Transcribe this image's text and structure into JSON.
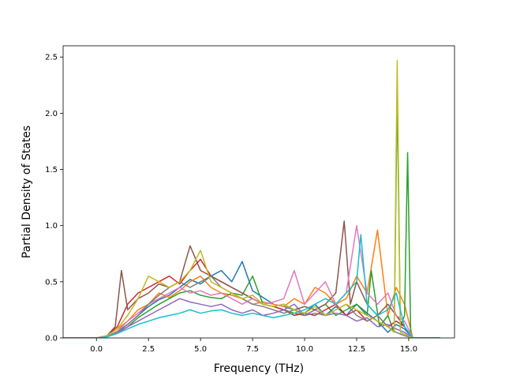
{
  "chart_data": {
    "type": "line",
    "title": "",
    "xlabel": "Frequency (THz)",
    "ylabel": "Partial Density of States",
    "xlim": [
      -1.6,
      17.2
    ],
    "ylim": [
      0.0,
      2.6
    ],
    "x_ticks": [
      0.0,
      2.5,
      5.0,
      7.5,
      10.0,
      12.5,
      15.0
    ],
    "x_tick_labels": [
      "0.0",
      "2.5",
      "5.0",
      "7.5",
      "10.0",
      "12.5",
      "15.0"
    ],
    "y_ticks": [
      0.0,
      0.5,
      1.0,
      1.5,
      2.0,
      2.5
    ],
    "y_tick_labels": [
      "0.0",
      "0.5",
      "1.0",
      "1.5",
      "2.0",
      "2.5"
    ],
    "grid": false,
    "legend": "none",
    "colors": [
      "#1f77b4",
      "#ff7f0e",
      "#2ca02c",
      "#d62728",
      "#9467bd",
      "#8c564b",
      "#e377c2",
      "#7f7f7f",
      "#bcbd22",
      "#17becf"
    ],
    "series": [
      {
        "x": [
          -1.6,
          0.0,
          0.5,
          1.0,
          1.5,
          2.0,
          2.5,
          3.0,
          3.5,
          4.0,
          4.5,
          5.0,
          5.5,
          6.0,
          6.5,
          7.0,
          7.5,
          8.0,
          8.5,
          9.0,
          9.5,
          10.0,
          10.5,
          11.0,
          11.5,
          12.0,
          12.5,
          13.0,
          13.5,
          14.0,
          14.4,
          14.8,
          15.2,
          16.5
        ],
        "y": [
          0,
          0,
          0.01,
          0.06,
          0.12,
          0.2,
          0.28,
          0.34,
          0.38,
          0.45,
          0.52,
          0.48,
          0.55,
          0.6,
          0.5,
          0.68,
          0.42,
          0.36,
          0.3,
          0.28,
          0.25,
          0.22,
          0.3,
          0.2,
          0.28,
          0.2,
          0.3,
          0.22,
          0.15,
          0.05,
          0.12,
          0.08,
          0,
          0
        ]
      },
      {
        "x": [
          -1.6,
          0.0,
          0.5,
          1.0,
          1.5,
          2.0,
          2.5,
          3.0,
          3.5,
          4.0,
          4.5,
          5.0,
          5.5,
          6.0,
          6.5,
          7.0,
          7.5,
          8.0,
          8.5,
          9.0,
          9.5,
          10.0,
          10.5,
          11.0,
          11.5,
          12.0,
          12.5,
          13.0,
          13.5,
          14.0,
          14.4,
          14.8,
          15.2,
          16.5
        ],
        "y": [
          0,
          0,
          0.02,
          0.08,
          0.15,
          0.25,
          0.3,
          0.4,
          0.36,
          0.42,
          0.5,
          0.55,
          0.45,
          0.4,
          0.38,
          0.35,
          0.3,
          0.32,
          0.3,
          0.28,
          0.35,
          0.3,
          0.45,
          0.4,
          0.3,
          0.35,
          0.55,
          0.4,
          0.96,
          0.2,
          0.45,
          0.3,
          0,
          0
        ]
      },
      {
        "x": [
          -1.6,
          0.0,
          0.5,
          1.0,
          1.5,
          2.0,
          2.5,
          3.0,
          3.5,
          4.0,
          4.5,
          5.0,
          5.5,
          6.0,
          6.5,
          7.0,
          7.5,
          8.0,
          8.5,
          9.0,
          9.5,
          10.0,
          10.5,
          11.0,
          11.5,
          12.0,
          12.5,
          13.0,
          13.2,
          13.6,
          14.0,
          14.3,
          14.45,
          14.6,
          14.8,
          14.95,
          15.1,
          16.5
        ],
        "y": [
          0,
          0,
          0.01,
          0.05,
          0.1,
          0.18,
          0.24,
          0.3,
          0.35,
          0.4,
          0.42,
          0.38,
          0.36,
          0.35,
          0.4,
          0.38,
          0.55,
          0.3,
          0.28,
          0.25,
          0.22,
          0.2,
          0.25,
          0.3,
          0.2,
          0.25,
          0.3,
          0.2,
          0.6,
          0.1,
          0.2,
          0.05,
          2.16,
          0.1,
          0.2,
          1.65,
          0,
          0
        ]
      },
      {
        "x": [
          -1.6,
          0.0,
          0.5,
          1.0,
          1.5,
          2.0,
          2.5,
          3.0,
          3.5,
          4.0,
          4.5,
          5.0,
          5.5,
          6.0,
          6.5,
          7.0,
          7.5,
          8.0,
          8.5,
          9.0,
          9.5,
          10.0,
          10.5,
          11.0,
          11.5,
          12.0,
          12.5,
          13.0,
          13.5,
          14.0,
          14.4,
          14.8,
          15.2,
          16.5
        ],
        "y": [
          0,
          0,
          0.02,
          0.1,
          0.3,
          0.4,
          0.45,
          0.5,
          0.55,
          0.48,
          0.6,
          0.7,
          0.55,
          0.5,
          0.45,
          0.4,
          0.35,
          0.3,
          0.28,
          0.25,
          0.2,
          0.22,
          0.2,
          0.25,
          0.3,
          0.2,
          0.25,
          0.15,
          0.2,
          0.1,
          0.15,
          0.1,
          0,
          0
        ]
      },
      {
        "x": [
          -1.6,
          0.0,
          0.5,
          1.0,
          1.5,
          2.0,
          2.5,
          3.0,
          3.5,
          4.0,
          4.5,
          5.0,
          5.5,
          6.0,
          6.5,
          7.0,
          7.5,
          8.0,
          8.5,
          9.0,
          9.5,
          10.0,
          10.5,
          11.0,
          11.5,
          12.0,
          12.5,
          13.0,
          13.5,
          14.0,
          14.4,
          14.8,
          15.2,
          16.5
        ],
        "y": [
          0,
          0,
          0.01,
          0.04,
          0.1,
          0.15,
          0.2,
          0.25,
          0.3,
          0.35,
          0.32,
          0.3,
          0.28,
          0.3,
          0.25,
          0.22,
          0.25,
          0.2,
          0.22,
          0.25,
          0.3,
          0.2,
          0.25,
          0.2,
          0.22,
          0.2,
          0.15,
          0.18,
          0.1,
          0.12,
          0.08,
          0.05,
          0,
          0
        ]
      },
      {
        "x": [
          -1.6,
          0.0,
          0.5,
          0.9,
          1.2,
          1.5,
          2.0,
          2.5,
          3.0,
          3.5,
          4.0,
          4.5,
          5.0,
          5.5,
          6.0,
          6.5,
          7.0,
          7.5,
          8.0,
          8.5,
          9.0,
          9.5,
          10.0,
          10.5,
          11.0,
          11.5,
          11.9,
          12.2,
          12.5,
          13.0,
          13.5,
          14.0,
          14.4,
          14.8,
          15.2,
          16.5
        ],
        "y": [
          0,
          0,
          0.02,
          0.1,
          0.6,
          0.25,
          0.35,
          0.4,
          0.48,
          0.45,
          0.5,
          0.82,
          0.6,
          0.55,
          0.5,
          0.45,
          0.4,
          0.35,
          0.3,
          0.28,
          0.3,
          0.25,
          0.28,
          0.25,
          0.3,
          0.4,
          1.04,
          0.3,
          0.5,
          0.3,
          0.2,
          0.3,
          0.2,
          0.1,
          0,
          0
        ]
      },
      {
        "x": [
          -1.6,
          0.0,
          0.5,
          1.0,
          1.5,
          2.0,
          2.5,
          3.0,
          3.5,
          4.0,
          4.5,
          5.0,
          5.5,
          6.0,
          6.5,
          7.0,
          7.5,
          8.0,
          8.5,
          9.0,
          9.5,
          10.0,
          10.5,
          11.0,
          11.5,
          12.0,
          12.5,
          13.0,
          13.5,
          14.0,
          14.4,
          14.8,
          15.2,
          16.5
        ],
        "y": [
          0,
          0,
          0.01,
          0.06,
          0.15,
          0.22,
          0.3,
          0.35,
          0.4,
          0.45,
          0.4,
          0.42,
          0.38,
          0.4,
          0.35,
          0.3,
          0.35,
          0.3,
          0.32,
          0.35,
          0.6,
          0.3,
          0.4,
          0.5,
          0.3,
          0.4,
          1.0,
          0.4,
          0.3,
          0.4,
          0.2,
          0.15,
          0,
          0
        ]
      },
      {
        "x": [
          -1.6,
          0.0,
          0.5,
          1.0,
          1.5,
          2.0,
          2.5,
          3.0,
          3.5,
          4.0,
          4.5,
          5.0,
          5.5,
          6.0,
          6.5,
          7.0,
          7.5,
          8.0,
          8.5,
          9.0,
          9.5,
          10.0,
          10.5,
          11.0,
          11.5,
          12.0,
          12.5,
          13.0,
          13.5,
          14.0,
          14.4,
          14.8,
          15.2,
          16.5
        ],
        "y": [
          0,
          0,
          0.01,
          0.05,
          0.12,
          0.2,
          0.3,
          0.38,
          0.45,
          0.5,
          0.45,
          0.5,
          0.55,
          0.45,
          0.4,
          0.35,
          0.3,
          0.28,
          0.25,
          0.22,
          0.25,
          0.2,
          0.22,
          0.2,
          0.25,
          0.3,
          0.2,
          0.15,
          0.2,
          0.1,
          0.05,
          0.02,
          0,
          0
        ]
      },
      {
        "x": [
          -1.6,
          0.0,
          0.5,
          1.0,
          1.5,
          2.0,
          2.5,
          3.0,
          3.5,
          4.0,
          4.5,
          5.0,
          5.5,
          6.0,
          6.5,
          7.0,
          7.5,
          8.0,
          8.5,
          9.0,
          9.5,
          10.0,
          10.5,
          11.0,
          11.5,
          12.0,
          12.5,
          13.0,
          13.5,
          14.0,
          14.3,
          14.45,
          14.6,
          15.2,
          16.5
        ],
        "y": [
          0,
          0,
          0.02,
          0.08,
          0.2,
          0.35,
          0.55,
          0.5,
          0.45,
          0.5,
          0.6,
          0.78,
          0.5,
          0.45,
          0.4,
          0.35,
          0.38,
          0.3,
          0.28,
          0.3,
          0.25,
          0.22,
          0.28,
          0.2,
          0.25,
          0.3,
          0.25,
          0.2,
          0.15,
          0.1,
          0.05,
          2.47,
          0.05,
          0,
          0
        ]
      },
      {
        "x": [
          -1.6,
          0.0,
          0.5,
          1.0,
          1.5,
          2.0,
          2.5,
          3.0,
          3.5,
          4.0,
          4.5,
          5.0,
          5.5,
          6.0,
          6.5,
          7.0,
          7.5,
          8.0,
          8.5,
          9.0,
          9.5,
          10.0,
          10.5,
          11.0,
          11.5,
          12.0,
          12.5,
          12.7,
          13.0,
          13.5,
          14.0,
          14.4,
          14.8,
          15.2,
          16.5
        ],
        "y": [
          0,
          0,
          0.01,
          0.04,
          0.08,
          0.12,
          0.15,
          0.18,
          0.2,
          0.22,
          0.25,
          0.22,
          0.24,
          0.25,
          0.22,
          0.2,
          0.22,
          0.2,
          0.18,
          0.2,
          0.22,
          0.25,
          0.3,
          0.35,
          0.3,
          0.4,
          0.5,
          0.92,
          0.3,
          0.2,
          0.25,
          0.4,
          0.1,
          0,
          0
        ]
      }
    ]
  }
}
